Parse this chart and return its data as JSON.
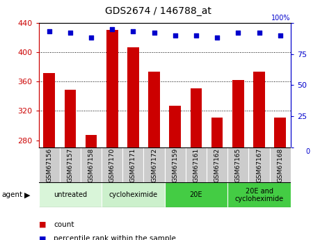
{
  "title": "GDS2674 / 146788_at",
  "samples": [
    "GSM67156",
    "GSM67157",
    "GSM67158",
    "GSM67170",
    "GSM67171",
    "GSM67172",
    "GSM67159",
    "GSM67161",
    "GSM67162",
    "GSM67165",
    "GSM67167",
    "GSM67168"
  ],
  "counts": [
    372,
    349,
    287,
    430,
    407,
    373,
    327,
    351,
    311,
    362,
    373,
    311
  ],
  "percentiles": [
    93,
    92,
    88,
    95,
    93,
    92,
    90,
    90,
    88,
    92,
    92,
    90
  ],
  "ylim_left": [
    270,
    440
  ],
  "ylim_right": [
    0,
    100
  ],
  "yticks_left": [
    280,
    320,
    360,
    400,
    440
  ],
  "yticks_right": [
    0,
    25,
    50,
    75,
    100
  ],
  "bar_color": "#cc0000",
  "dot_color": "#0000cc",
  "groups": [
    {
      "label": "untreated",
      "start": 0,
      "end": 3,
      "color": "#d9f5d9"
    },
    {
      "label": "cycloheximide",
      "start": 3,
      "end": 6,
      "color": "#ccf0cc"
    },
    {
      "label": "20E",
      "start": 6,
      "end": 9,
      "color": "#44cc44"
    },
    {
      "label": "20E and\ncycloheximide",
      "start": 9,
      "end": 12,
      "color": "#44cc44"
    }
  ],
  "left_axis_color": "#cc0000",
  "right_axis_color": "#0000cc",
  "legend_count_label": "count",
  "legend_pct_label": "percentile rank within the sample",
  "tick_label_bg": "#cccccc",
  "sample_label_border": "#aaaaaa"
}
